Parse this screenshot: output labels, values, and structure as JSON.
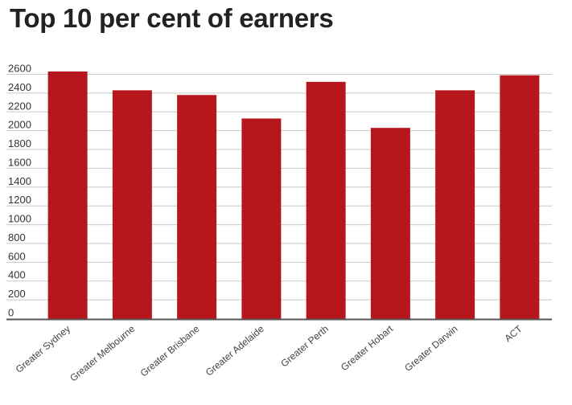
{
  "title": "Top 10 per cent of earners",
  "colors": {
    "bar": "#b5171c",
    "grid": "#c8c8c8",
    "axis": "#555555"
  },
  "chart_data": {
    "type": "bar",
    "title": "Top 10 per cent of earners",
    "xlabel": "",
    "ylabel": "",
    "categories": [
      "Greater Sydney",
      "Greater Melbourne",
      "Greater Brisbane",
      "Greater Adelaide",
      "Greater Perth",
      "Greater Hobart",
      "Greater Darwin",
      "ACT"
    ],
    "values": [
      2630,
      2430,
      2380,
      2130,
      2520,
      2030,
      2430,
      2590
    ],
    "ylim": [
      0,
      2600
    ],
    "yticks": [
      0,
      200,
      400,
      600,
      800,
      1000,
      1200,
      1400,
      1600,
      1800,
      2000,
      2200,
      2400,
      2600
    ],
    "grid": true,
    "legend": "none"
  }
}
